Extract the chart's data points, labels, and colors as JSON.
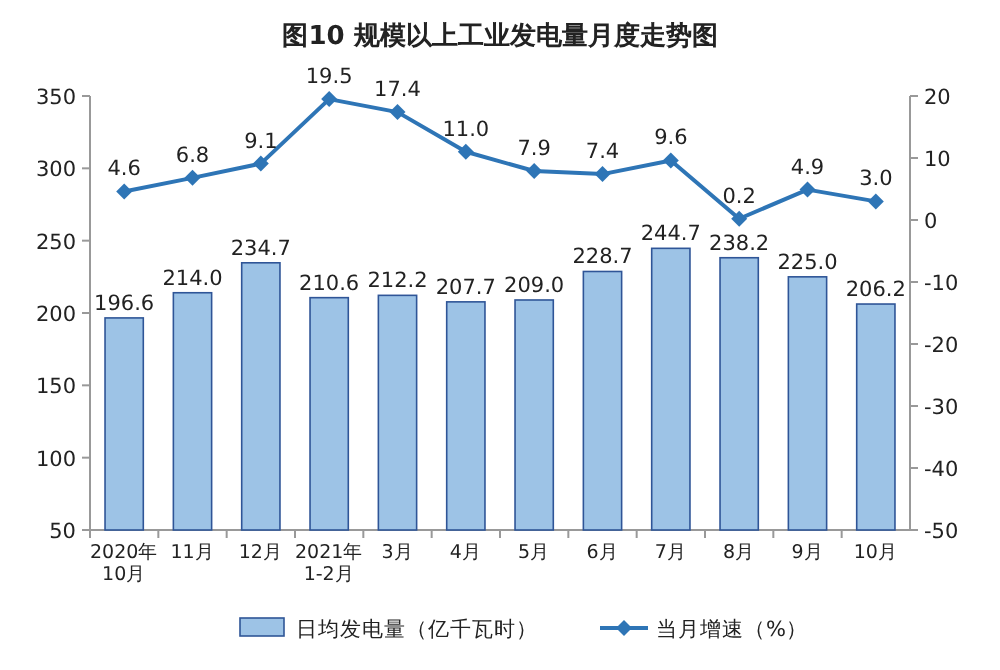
{
  "chart_data": {
    "type": "bar",
    "title": "图10 规模以上工业发电量月度走势图",
    "categories": [
      "2020年\n10月",
      "11月",
      "12月",
      "2021年\n1-2月",
      "3月",
      "4月",
      "5月",
      "6月",
      "7月",
      "8月",
      "9月",
      "10月"
    ],
    "series": [
      {
        "name": "日均发电量（亿千瓦时）",
        "color": "#9dc3e6",
        "values": [
          196.6,
          214.0,
          234.7,
          210.6,
          212.2,
          207.7,
          209.0,
          228.7,
          244.7,
          238.2,
          225.0,
          206.2
        ],
        "value_labels": [
          "196.6",
          "214.0",
          "234.7",
          "210.6",
          "212.2",
          "207.7",
          "209.0",
          "228.7",
          "244.7",
          "238.2",
          "225.0",
          "206.2"
        ]
      },
      {
        "name": "当月增速（%）",
        "type": "line",
        "axis": "y2",
        "color": "#2e75b6",
        "marker": "diamond",
        "values": [
          4.6,
          6.8,
          9.1,
          19.5,
          17.4,
          11.0,
          7.9,
          7.4,
          9.6,
          0.2,
          4.9,
          3.0
        ],
        "value_labels": [
          "4.6",
          "6.8",
          "9.1",
          "19.5",
          "17.4",
          "11.0",
          "7.9",
          "7.4",
          "9.6",
          "0.2",
          "4.9",
          "3.0"
        ]
      }
    ],
    "ylim": [
      50,
      350
    ],
    "yticks": [
      50,
      100,
      150,
      200,
      250,
      300,
      350
    ],
    "y2lim": [
      -50,
      20
    ],
    "y2ticks": [
      -50,
      -40,
      -30,
      -20,
      -10,
      0,
      10,
      20
    ],
    "legend": "bottom",
    "grid": false
  }
}
